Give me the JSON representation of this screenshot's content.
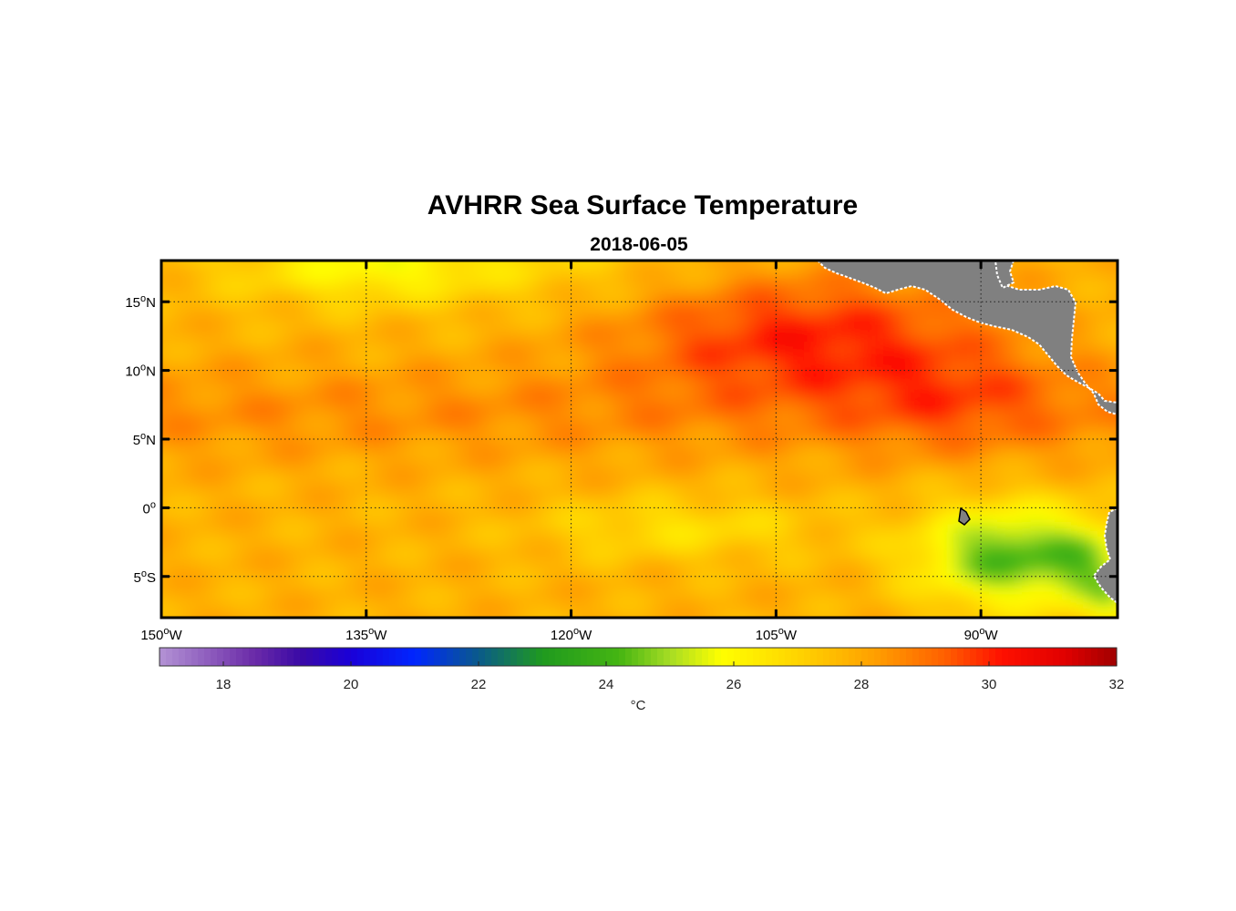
{
  "title": "AVHRR Sea Surface Temperature",
  "subtitle": "2018-06-05",
  "colorbar": {
    "min": 17,
    "max": 32,
    "ticks": [
      "18",
      "20",
      "22",
      "24",
      "26",
      "28",
      "30",
      "32"
    ],
    "tick_values": [
      18,
      20,
      22,
      24,
      26,
      28,
      30,
      32
    ],
    "unit": "°C",
    "stops": [
      [
        17,
        "#b392d4"
      ],
      [
        18.5,
        "#6a2aa8"
      ],
      [
        19.2,
        "#3b0aa6"
      ],
      [
        20,
        "#1a00d8"
      ],
      [
        21,
        "#0026ff"
      ],
      [
        22,
        "#0a5a8a"
      ],
      [
        23,
        "#1f9a1f"
      ],
      [
        24.2,
        "#45b512"
      ],
      [
        25,
        "#a6dc24"
      ],
      [
        25.8,
        "#ffff00"
      ],
      [
        27,
        "#ffd400"
      ],
      [
        28.2,
        "#ffa000"
      ],
      [
        29.3,
        "#ff6000"
      ],
      [
        30.2,
        "#ff1000"
      ],
      [
        31.2,
        "#e00000"
      ],
      [
        32,
        "#a00000"
      ]
    ]
  },
  "map": {
    "lon_range": [
      -150,
      -80
    ],
    "lat_range": [
      -8,
      18
    ],
    "lon_ticks": [
      -150,
      -135,
      -120,
      -105,
      -90
    ],
    "lat_ticks": [
      15,
      10,
      5,
      0,
      -5
    ],
    "lon_labels": [
      {
        "deg": "150",
        "hemi": "W"
      },
      {
        "deg": "135",
        "hemi": "W"
      },
      {
        "deg": "120",
        "hemi": "W"
      },
      {
        "deg": "105",
        "hemi": "W"
      },
      {
        "deg": "90",
        "hemi": "W"
      }
    ],
    "lat_labels": [
      {
        "deg": "15",
        "hemi": "N"
      },
      {
        "deg": "10",
        "hemi": "N"
      },
      {
        "deg": "5",
        "hemi": "N"
      },
      {
        "deg": "0",
        "hemi": ""
      },
      {
        "deg": "5",
        "hemi": "S"
      }
    ],
    "land_color": "#808080"
  }
}
